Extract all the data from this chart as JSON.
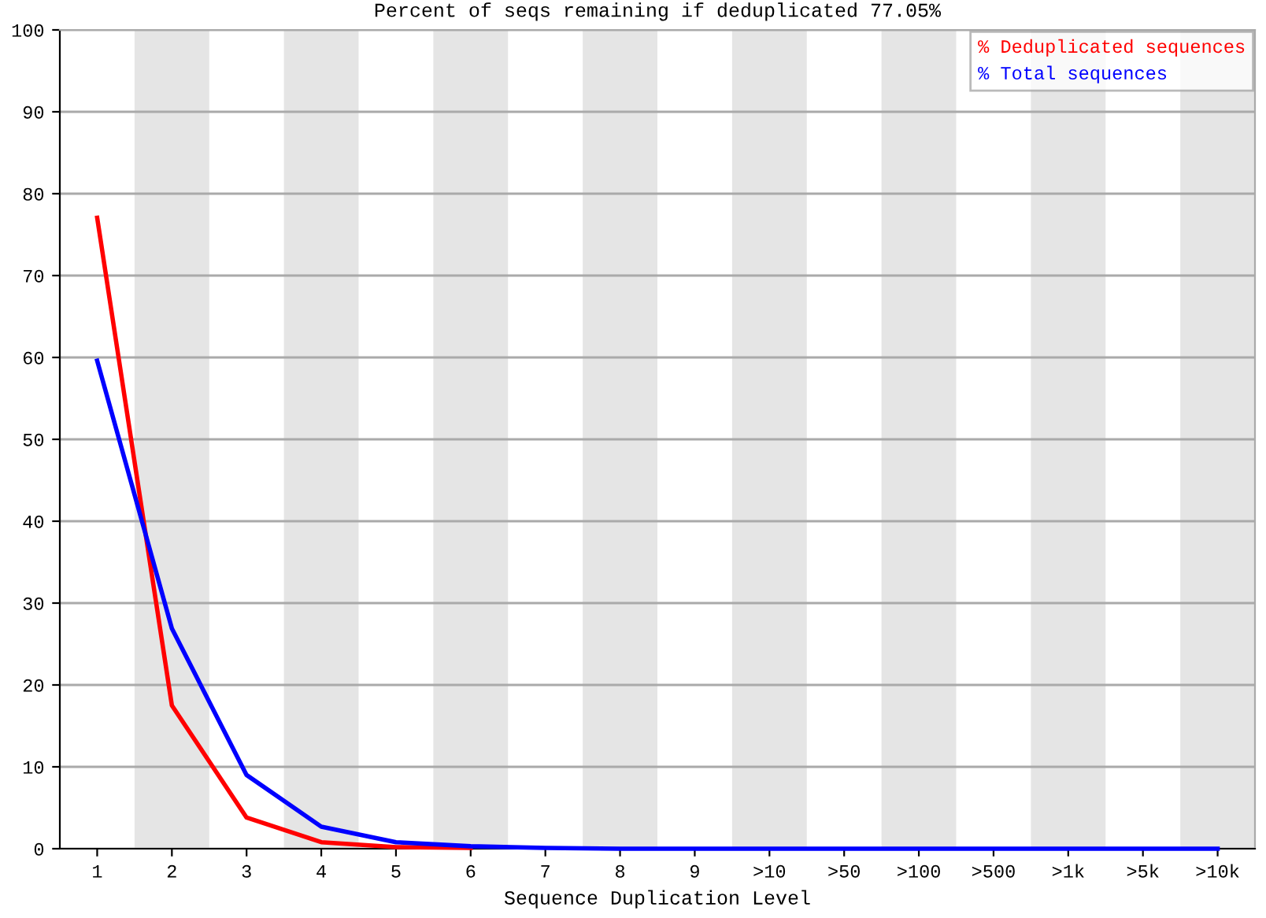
{
  "chart_data": {
    "type": "line",
    "title": "Percent of seqs remaining if deduplicated 77.05%",
    "xlabel": "Sequence Duplication Level",
    "categories": [
      "1",
      "2",
      "3",
      "4",
      "5",
      "6",
      "7",
      "8",
      "9",
      ">10",
      ">50",
      ">100",
      ">500",
      ">1k",
      ">5k",
      ">10k"
    ],
    "series": [
      {
        "name": "% Deduplicated sequences",
        "color": "#ff0000",
        "values": [
          77.05,
          17.5,
          3.8,
          0.8,
          0.2,
          0.1,
          null,
          null,
          null,
          null,
          null,
          null,
          null,
          null,
          null,
          null
        ]
      },
      {
        "name": "% Total sequences",
        "color": "#0000ff",
        "values": [
          59.6,
          26.9,
          9.0,
          2.7,
          0.8,
          0.3,
          0.1,
          0,
          0,
          0,
          0,
          0,
          0,
          0,
          0,
          0
        ]
      }
    ],
    "ylim": [
      0,
      100
    ],
    "yticks": [
      0,
      10,
      20,
      30,
      40,
      50,
      60,
      70,
      80,
      90,
      100
    ],
    "grid": "y",
    "legend": "top right",
    "marker": "none",
    "line_style": "solid",
    "bands": [
      {
        "axis": "x",
        "from": "2",
        "to": "2",
        "color": "#e5e5e5"
      },
      {
        "axis": "x",
        "from": "4",
        "to": "4",
        "color": "#e5e5e5"
      },
      {
        "axis": "x",
        "from": "6",
        "to": "6",
        "color": "#e5e5e5"
      },
      {
        "axis": "x",
        "from": "8",
        "to": "8",
        "color": "#e5e5e5"
      },
      {
        "axis": "x",
        "from": ">10",
        "to": ">10",
        "color": "#e5e5e5"
      },
      {
        "axis": "x",
        "from": ">100",
        "to": ">100",
        "color": "#e5e5e5"
      },
      {
        "axis": "x",
        "from": ">1k",
        "to": ">1k",
        "color": "#e5e5e5"
      },
      {
        "axis": "x",
        "from": ">10k",
        "to": ">10k",
        "color": "#e5e5e5"
      }
    ]
  }
}
